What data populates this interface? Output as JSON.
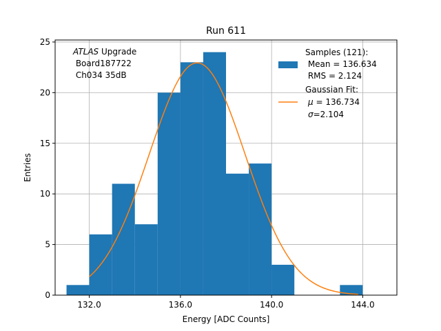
{
  "chart_data": {
    "type": "bar",
    "title": "Run 611",
    "xlabel": "Energy [ADC Counts]",
    "ylabel": "Entries",
    "xlim": [
      130.5,
      145.5
    ],
    "ylim": [
      0,
      25.2
    ],
    "xticks": [
      132.0,
      136.0,
      140.0,
      144.0
    ],
    "xtick_labels": [
      "132.0",
      "136.0",
      "140.0",
      "144.0"
    ],
    "yticks": [
      0,
      5,
      10,
      15,
      20,
      25
    ],
    "ytick_labels": [
      "0",
      "5",
      "10",
      "15",
      "20",
      "25"
    ],
    "grid": true,
    "bin_edges": [
      131,
      132,
      133,
      134,
      135,
      136,
      137,
      138,
      139,
      140,
      141,
      142,
      143,
      144,
      145
    ],
    "counts": [
      1,
      6,
      11,
      7,
      20,
      23,
      24,
      12,
      13,
      3,
      0,
      0,
      1,
      0
    ],
    "bar_color": "#1f77b4",
    "fit": {
      "mu": 136.734,
      "sigma": 2.104,
      "x_range": [
        132.0,
        143.8
      ],
      "color": "#ff7f0e"
    },
    "annotation": {
      "atlas": "ATLAS",
      "upgrade": " Upgrade",
      "board": " Board187722",
      "channel": " Ch034 35dB"
    },
    "legend": {
      "position": "upper right",
      "hist_title": "Samples (121):",
      "hist_mean": " Mean = 136.634",
      "hist_rms": " RMS = 2.124",
      "fit_title": "Gaussian Fit:",
      "fit_mu_symbol": "μ",
      "fit_mu_value": " = 136.734",
      "fit_sigma_symbol": "σ",
      "fit_sigma_value": "=2.104"
    }
  }
}
